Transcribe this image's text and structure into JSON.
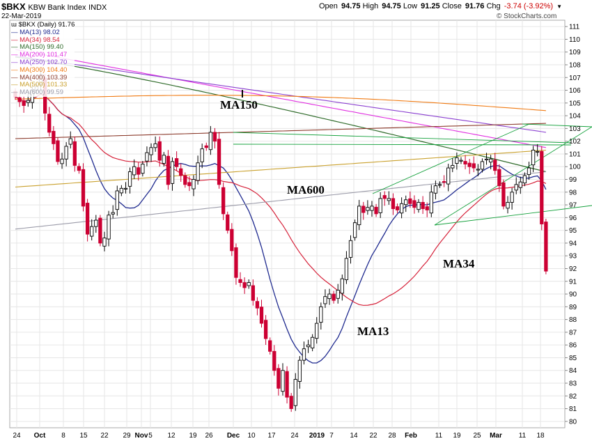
{
  "header": {
    "symbol": "$BKX",
    "name": "KBW Bank Index",
    "exchange": "INDX",
    "date": "22-Mar-2019",
    "open_label": "Open",
    "open": "94.75",
    "high_label": "High",
    "high": "94.75",
    "low_label": "Low",
    "low": "91.25",
    "close_label": "Close",
    "close": "91.76",
    "chg_label": "Chg",
    "chg": "-3.74 (-3.92%)",
    "watermark": "© StockCharts.com"
  },
  "colors": {
    "up": "#000000",
    "down": "#cc0033",
    "ma13": "#1f2a8f",
    "ma34": "#d6223a",
    "ma150": "#2f6b2a",
    "ma200": "#e02ee0",
    "ma250": "#8a3fd0",
    "ma300": "#f07a12",
    "ma400": "#8b3a2b",
    "ma500": "#c9a02c",
    "ma600": "#9a9aa8",
    "trend": "#12a03a",
    "chg": "#cc0000"
  },
  "chart_data": {
    "type": "candlestick",
    "title": "$BKX KBW Bank Index INDX",
    "ylim": [
      79.5,
      111.5
    ],
    "y_ticks": [
      80,
      81,
      82,
      83,
      84,
      85,
      86,
      87,
      88,
      89,
      90,
      91,
      92,
      93,
      94,
      95,
      96,
      97,
      98,
      99,
      100,
      101,
      102,
      103,
      104,
      105,
      106,
      107,
      108,
      109,
      110,
      111
    ],
    "x_ticks": [
      "24",
      "Oct",
      "8",
      "15",
      "22",
      "29",
      "Nov",
      "5",
      "12",
      "19",
      "26",
      "Dec",
      "10",
      "17",
      "24",
      "2019",
      "7",
      "14",
      "22",
      "28",
      "Feb",
      "11",
      "19",
      "25",
      "Mar",
      "11",
      "18"
    ],
    "legend": [
      {
        "name": "$BKX (Daily)",
        "value": "91.76"
      },
      {
        "name": "MA(13)",
        "value": "98.02"
      },
      {
        "name": "MA(34)",
        "value": "98.54"
      },
      {
        "name": "MA(150)",
        "value": "99.40"
      },
      {
        "name": "MA(200)",
        "value": "101.47"
      },
      {
        "name": "MA(250)",
        "value": "102.70"
      },
      {
        "name": "MA(300)",
        "value": "104.40"
      },
      {
        "name": "MA(400)",
        "value": "103.39"
      },
      {
        "name": "MA(500)",
        "value": "101.33"
      },
      {
        "name": "MA(600)",
        "value": "99.59"
      }
    ],
    "annotations": [
      "MA150",
      "MA600",
      "MA34",
      "MA13"
    ],
    "closes": [
      105.5,
      105.1,
      104.8,
      105.2,
      106.0,
      106.3,
      107.2,
      104.2,
      102.7,
      101.8,
      100.4,
      100.6,
      101.6,
      102.2,
      100.1,
      99.7,
      96.9,
      94.7,
      95.3,
      95.8,
      94.0,
      94.4,
      96.2,
      96.4,
      98.1,
      98.3,
      98.3,
      99.6,
      100.0,
      99.4,
      100.2,
      101.1,
      101.5,
      101.8,
      100.5,
      100.9,
      98.6,
      100.4,
      100.0,
      99.3,
      98.6,
      98.5,
      99.0,
      100.3,
      101.4,
      101.5,
      102.7,
      102.0,
      98.6,
      96.3,
      95.0,
      93.4,
      91.3,
      90.9,
      90.5,
      90.9,
      89.5,
      88.9,
      87.7,
      86.5,
      85.5,
      84.0,
      82.6,
      84.0,
      81.9,
      81.0,
      83.3,
      84.8,
      85.7,
      86.0,
      86.6,
      87.7,
      89.0,
      89.8,
      90.0,
      89.5,
      90.3,
      91.2,
      92.8,
      94.2,
      95.6,
      96.9,
      96.4,
      96.8,
      96.9,
      96.3,
      97.5,
      97.5,
      97.5,
      96.7,
      96.6,
      97.1,
      97.4,
      97.1,
      96.8,
      97.2,
      96.7,
      96.6,
      98.0,
      98.5,
      98.6,
      98.8,
      99.9,
      100.1,
      100.7,
      100.5,
      100.2,
      100.0,
      99.9,
      99.8,
      100.4,
      100.6,
      100.6,
      99.7,
      98.5,
      96.9,
      97.2,
      98.0,
      98.6,
      98.8,
      99.3,
      99.9,
      101.3,
      101.2,
      95.5,
      91.8
    ]
  }
}
